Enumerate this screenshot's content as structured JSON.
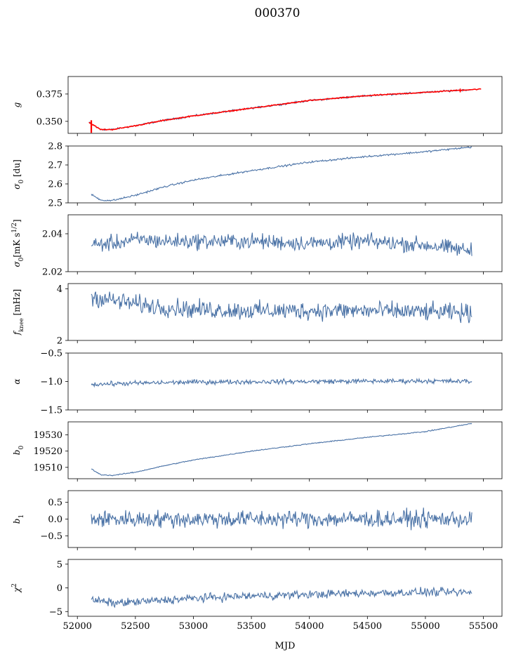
{
  "figure": {
    "title": "000370",
    "xlabel": "MJD"
  },
  "colors": {
    "series": "#4a72a6",
    "fit": "#ff0000",
    "axes": "#000000"
  },
  "chart_data": [
    {
      "id": "g",
      "type": "line",
      "ylabel": "g",
      "ylim": [
        0.339,
        0.391
      ],
      "yticks": [
        0.35,
        0.375
      ],
      "ytick_labels": [
        "0.350",
        "0.375"
      ],
      "xlim": [
        51920,
        55660
      ],
      "series": [
        {
          "name": "g",
          "color": "#4a72a6",
          "x": [
            52100,
            52200,
            52300,
            52500,
            52750,
            53000,
            53500,
            54000,
            54500,
            55000,
            55300,
            55400
          ],
          "y": [
            0.349,
            0.3425,
            0.3425,
            0.346,
            0.351,
            0.355,
            0.362,
            0.369,
            0.3735,
            0.3765,
            0.3785,
            0.379
          ],
          "noise": 0.0007
        },
        {
          "name": "g fit",
          "color": "#ff0000",
          "x": [
            52100,
            52200,
            52300,
            52500,
            52750,
            53000,
            53500,
            54000,
            54500,
            55000,
            55300,
            55480
          ],
          "y": [
            0.349,
            0.3425,
            0.3425,
            0.346,
            0.351,
            0.355,
            0.362,
            0.369,
            0.3735,
            0.3765,
            0.3785,
            0.3795
          ],
          "noise": 0.0004
        }
      ]
    },
    {
      "id": "sigma0_du",
      "type": "line",
      "ylabel": "σ0 [du]",
      "ylim": [
        2.5,
        2.8
      ],
      "yticks": [
        2.5,
        2.6,
        2.7,
        2.8
      ],
      "ytick_labels": [
        "2.5",
        "2.6",
        "2.7",
        "2.8"
      ],
      "xlim": [
        51920,
        55660
      ],
      "series": [
        {
          "name": "sigma0",
          "color": "#4a72a6",
          "x": [
            52120,
            52200,
            52300,
            52500,
            52750,
            53000,
            53500,
            54000,
            54500,
            55000,
            55400
          ],
          "y": [
            2.545,
            2.515,
            2.512,
            2.54,
            2.585,
            2.62,
            2.67,
            2.715,
            2.745,
            2.77,
            2.795
          ],
          "noise": 0.004
        }
      ]
    },
    {
      "id": "sigma0_mk",
      "type": "line",
      "ylabel": "σ0[mK s^1/2]",
      "ylim": [
        2.02,
        2.05
      ],
      "yticks": [
        2.02,
        2.04
      ],
      "ytick_labels": [
        "2.02",
        "2.04"
      ],
      "xlim": [
        51920,
        55660
      ],
      "series": [
        {
          "name": "sigma0 mK",
          "color": "#4a72a6",
          "x": [
            52120,
            52300,
            52550,
            52750,
            53000,
            53500,
            54000,
            54500,
            55000,
            55400
          ],
          "y": [
            2.034,
            2.035,
            2.037,
            2.036,
            2.036,
            2.036,
            2.035,
            2.036,
            2.034,
            2.031
          ],
          "noise": 0.0035
        }
      ]
    },
    {
      "id": "fknee",
      "type": "line",
      "ylabel": "f_knee [mHz]",
      "ylim": [
        2.0,
        4.2
      ],
      "yticks": [
        2,
        4
      ],
      "ytick_labels": [
        "2",
        "4"
      ],
      "xlim": [
        51920,
        55660
      ],
      "series": [
        {
          "name": "fknee",
          "color": "#4a72a6",
          "x": [
            52120,
            52300,
            52600,
            53000,
            53500,
            54000,
            54500,
            55000,
            55400
          ],
          "y": [
            3.7,
            3.55,
            3.35,
            3.2,
            3.15,
            3.15,
            3.15,
            3.1,
            3.05
          ],
          "noise": 0.3
        }
      ]
    },
    {
      "id": "alpha",
      "type": "line",
      "ylabel": "α",
      "ylim": [
        -1.5,
        -0.5
      ],
      "yticks": [
        -1.5,
        -1.0,
        -0.5
      ],
      "ytick_labels": [
        "−1.5",
        "−1.0",
        "−0.5"
      ],
      "xlim": [
        51920,
        55660
      ],
      "series": [
        {
          "name": "alpha",
          "color": "#4a72a6",
          "x": [
            52120,
            52500,
            53000,
            54000,
            55000,
            55400
          ],
          "y": [
            -1.05,
            -1.03,
            -1.01,
            -1.0,
            -0.99,
            -1.0
          ],
          "noise": 0.035
        }
      ]
    },
    {
      "id": "b0",
      "type": "line",
      "ylabel": "b0",
      "ylim": [
        19503,
        19538
      ],
      "yticks": [
        19510,
        19520,
        19530
      ],
      "ytick_labels": [
        "19510",
        "19520",
        "19530"
      ],
      "xlim": [
        51920,
        55660
      ],
      "series": [
        {
          "name": "b0",
          "color": "#4a72a6",
          "x": [
            52120,
            52200,
            52300,
            52500,
            52750,
            53000,
            53500,
            54000,
            54500,
            55000,
            55400
          ],
          "y": [
            19509,
            19505.5,
            19505,
            19507,
            19511,
            19514.5,
            19520,
            19524.5,
            19528.5,
            19532,
            19537
          ],
          "noise": 0.25
        }
      ]
    },
    {
      "id": "b1",
      "type": "line",
      "ylabel": "b1",
      "ylim": [
        -0.85,
        0.85
      ],
      "yticks": [
        -0.5,
        0.0,
        0.5
      ],
      "ytick_labels": [
        "−0.5",
        "0.0",
        "0.5"
      ],
      "xlim": [
        51920,
        55660
      ],
      "series": [
        {
          "name": "b1",
          "color": "#4a72a6",
          "x": [
            52120,
            53000,
            54000,
            55000,
            55400
          ],
          "y": [
            0.0,
            0.0,
            0.0,
            0.0,
            0.0
          ],
          "noise": 0.22
        }
      ]
    },
    {
      "id": "chi2",
      "type": "line",
      "ylabel": "χ2",
      "ylim": [
        -6,
        6
      ],
      "yticks": [
        -5,
        0,
        5
      ],
      "ytick_labels": [
        "−5",
        "0",
        "5"
      ],
      "xlim": [
        51920,
        55660
      ],
      "xticks": [
        52000,
        52500,
        53000,
        53500,
        54000,
        54500,
        55000,
        55500
      ],
      "xtick_labels": [
        "52000",
        "52500",
        "53000",
        "53500",
        "54000",
        "54500",
        "55000",
        "55500"
      ],
      "series": [
        {
          "name": "chi2",
          "color": "#4a72a6",
          "x": [
            52120,
            52300,
            52500,
            53000,
            53500,
            54000,
            54500,
            55000,
            55400
          ],
          "y": [
            -2.5,
            -3.2,
            -3.0,
            -2.2,
            -1.7,
            -1.4,
            -1.1,
            -0.9,
            -1.0
          ],
          "noise": 0.75
        }
      ]
    }
  ]
}
